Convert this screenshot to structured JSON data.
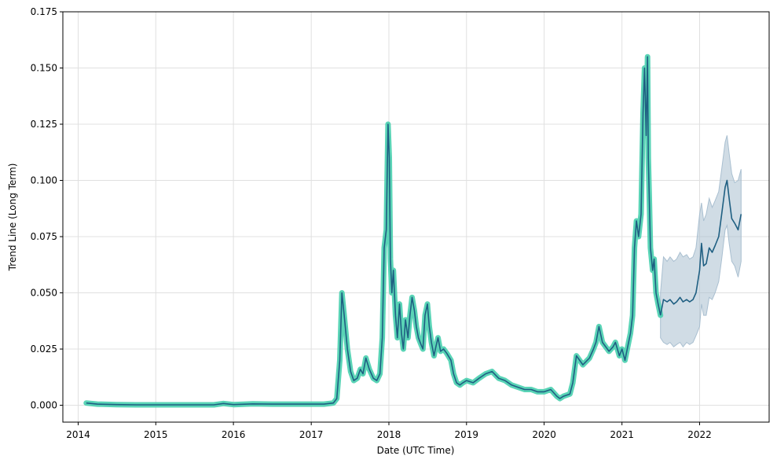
{
  "chart_data": {
    "type": "line",
    "title": "",
    "xlabel": "Date (UTC Time)",
    "ylabel": "Trend Line (Long Term)",
    "xlim": [
      "2013-10-21",
      "2022-11-24"
    ],
    "ylim": [
      -0.0075,
      0.175
    ],
    "grid": true,
    "x_ticks": [
      "2014",
      "2015",
      "2016",
      "2017",
      "2018",
      "2019",
      "2020",
      "2021",
      "2022"
    ],
    "y_ticks": [
      "0.000",
      "0.025",
      "0.050",
      "0.075",
      "0.100",
      "0.125",
      "0.150",
      "0.175"
    ],
    "colors": {
      "history_highlight": "#48CFAE",
      "trend_line": "#1F5F82",
      "forecast_band": "#A9BFD0",
      "grid": "#E0E0E0"
    },
    "series": [
      {
        "x": [
          "2014-02-08",
          "2014-04-01",
          "2014-07-01",
          "2014-10-01",
          "2015-01-01",
          "2015-04-01",
          "2015-07-01",
          "2015-10-01",
          "2015-11-15",
          "2016-01-01",
          "2016-04-01",
          "2016-07-01",
          "2016-10-01",
          "2017-01-01",
          "2017-03-01",
          "2017-04-15",
          "2017-05-01",
          "2017-05-15",
          "2017-05-25",
          "2017-06-05",
          "2017-06-20",
          "2017-07-05",
          "2017-07-20",
          "2017-08-05",
          "2017-08-20",
          "2017-09-01",
          "2017-09-15",
          "2017-10-01",
          "2017-10-20",
          "2017-11-05",
          "2017-11-20",
          "2017-12-01",
          "2017-12-10",
          "2017-12-20",
          "2017-12-28",
          "2018-01-03",
          "2018-01-08",
          "2018-01-15",
          "2018-01-22",
          "2018-02-01",
          "2018-02-10",
          "2018-02-20",
          "2018-03-01",
          "2018-03-10",
          "2018-03-20",
          "2018-04-01",
          "2018-04-10",
          "2018-04-20",
          "2018-05-01",
          "2018-05-10",
          "2018-05-20",
          "2018-06-01",
          "2018-06-10",
          "2018-06-20",
          "2018-07-01",
          "2018-07-10",
          "2018-07-20",
          "2018-08-01",
          "2018-08-10",
          "2018-08-20",
          "2018-09-01",
          "2018-09-15",
          "2018-10-01",
          "2018-10-20",
          "2018-11-01",
          "2018-11-15",
          "2018-12-01",
          "2018-12-15",
          "2019-01-01",
          "2019-02-01",
          "2019-03-01",
          "2019-04-01",
          "2019-05-01",
          "2019-06-01",
          "2019-07-01",
          "2019-08-01",
          "2019-09-01",
          "2019-10-01",
          "2019-11-01",
          "2019-12-01",
          "2020-01-01",
          "2020-02-01",
          "2020-03-01",
          "2020-03-15",
          "2020-04-01",
          "2020-05-01",
          "2020-05-15",
          "2020-06-01",
          "2020-07-01",
          "2020-08-01",
          "2020-08-20",
          "2020-09-01",
          "2020-09-15",
          "2020-10-01",
          "2020-11-01",
          "2020-11-20",
          "2020-12-01",
          "2020-12-20",
          "2021-01-01",
          "2021-01-15",
          "2021-02-01",
          "2021-02-10",
          "2021-02-20",
          "2021-03-01",
          "2021-03-10",
          "2021-03-20",
          "2021-04-01",
          "2021-04-10",
          "2021-04-17",
          "2021-04-25",
          "2021-05-01",
          "2021-05-05",
          "2021-05-10",
          "2021-05-15",
          "2021-05-25",
          "2021-06-01",
          "2021-06-10",
          "2021-06-20",
          "2021-07-01"
        ],
        "values": [
          0.001,
          0.0005,
          0.0003,
          0.0002,
          0.0002,
          0.0002,
          0.0002,
          0.0002,
          0.0008,
          0.0003,
          0.0006,
          0.0005,
          0.0005,
          0.0005,
          0.0005,
          0.001,
          0.003,
          0.02,
          0.05,
          0.04,
          0.025,
          0.015,
          0.011,
          0.012,
          0.016,
          0.014,
          0.021,
          0.016,
          0.012,
          0.011,
          0.014,
          0.03,
          0.07,
          0.078,
          0.125,
          0.11,
          0.065,
          0.05,
          0.06,
          0.04,
          0.03,
          0.045,
          0.032,
          0.025,
          0.038,
          0.03,
          0.04,
          0.048,
          0.042,
          0.035,
          0.03,
          0.027,
          0.025,
          0.04,
          0.045,
          0.035,
          0.028,
          0.022,
          0.026,
          0.03,
          0.024,
          0.025,
          0.023,
          0.02,
          0.014,
          0.01,
          0.009,
          0.01,
          0.011,
          0.01,
          0.012,
          0.014,
          0.015,
          0.012,
          0.011,
          0.009,
          0.008,
          0.007,
          0.007,
          0.006,
          0.006,
          0.007,
          0.004,
          0.003,
          0.004,
          0.005,
          0.01,
          0.022,
          0.018,
          0.021,
          0.025,
          0.028,
          0.035,
          0.028,
          0.024,
          0.026,
          0.028,
          0.022,
          0.025,
          0.02,
          0.028,
          0.032,
          0.04,
          0.07,
          0.082,
          0.075,
          0.085,
          0.13,
          0.15,
          0.12,
          0.155,
          0.11,
          0.09,
          0.07,
          0.06,
          0.065,
          0.05,
          0.045,
          0.04
        ]
      },
      {
        "x": [
          "2021-07-01",
          "2021-07-15",
          "2021-08-01",
          "2021-08-15",
          "2021-09-01",
          "2021-09-15",
          "2021-10-01",
          "2021-10-15",
          "2021-11-01",
          "2021-11-15",
          "2021-12-01",
          "2021-12-15",
          "2022-01-01",
          "2022-01-10",
          "2022-01-20",
          "2022-02-01",
          "2022-02-15",
          "2022-03-01",
          "2022-03-15",
          "2022-04-01",
          "2022-04-15",
          "2022-05-01",
          "2022-05-10",
          "2022-05-20",
          "2022-06-01",
          "2022-06-15",
          "2022-07-01",
          "2022-07-15"
        ],
        "values": [
          0.04,
          0.047,
          0.046,
          0.047,
          0.045,
          0.046,
          0.048,
          0.046,
          0.047,
          0.046,
          0.047,
          0.05,
          0.06,
          0.072,
          0.062,
          0.063,
          0.07,
          0.068,
          0.071,
          0.075,
          0.085,
          0.097,
          0.1,
          0.092,
          0.083,
          0.081,
          0.078,
          0.085
        ]
      }
    ],
    "forecast_upper": [
      0.05,
      0.066,
      0.064,
      0.066,
      0.064,
      0.065,
      0.068,
      0.066,
      0.067,
      0.065,
      0.066,
      0.07,
      0.085,
      0.09,
      0.082,
      0.085,
      0.092,
      0.088,
      0.091,
      0.095,
      0.105,
      0.117,
      0.12,
      0.112,
      0.103,
      0.099,
      0.1,
      0.105
    ],
    "forecast_lower": [
      0.03,
      0.028,
      0.027,
      0.028,
      0.026,
      0.027,
      0.028,
      0.026,
      0.028,
      0.027,
      0.028,
      0.031,
      0.035,
      0.045,
      0.04,
      0.04,
      0.048,
      0.047,
      0.05,
      0.055,
      0.065,
      0.078,
      0.08,
      0.072,
      0.064,
      0.062,
      0.057,
      0.064
    ]
  }
}
